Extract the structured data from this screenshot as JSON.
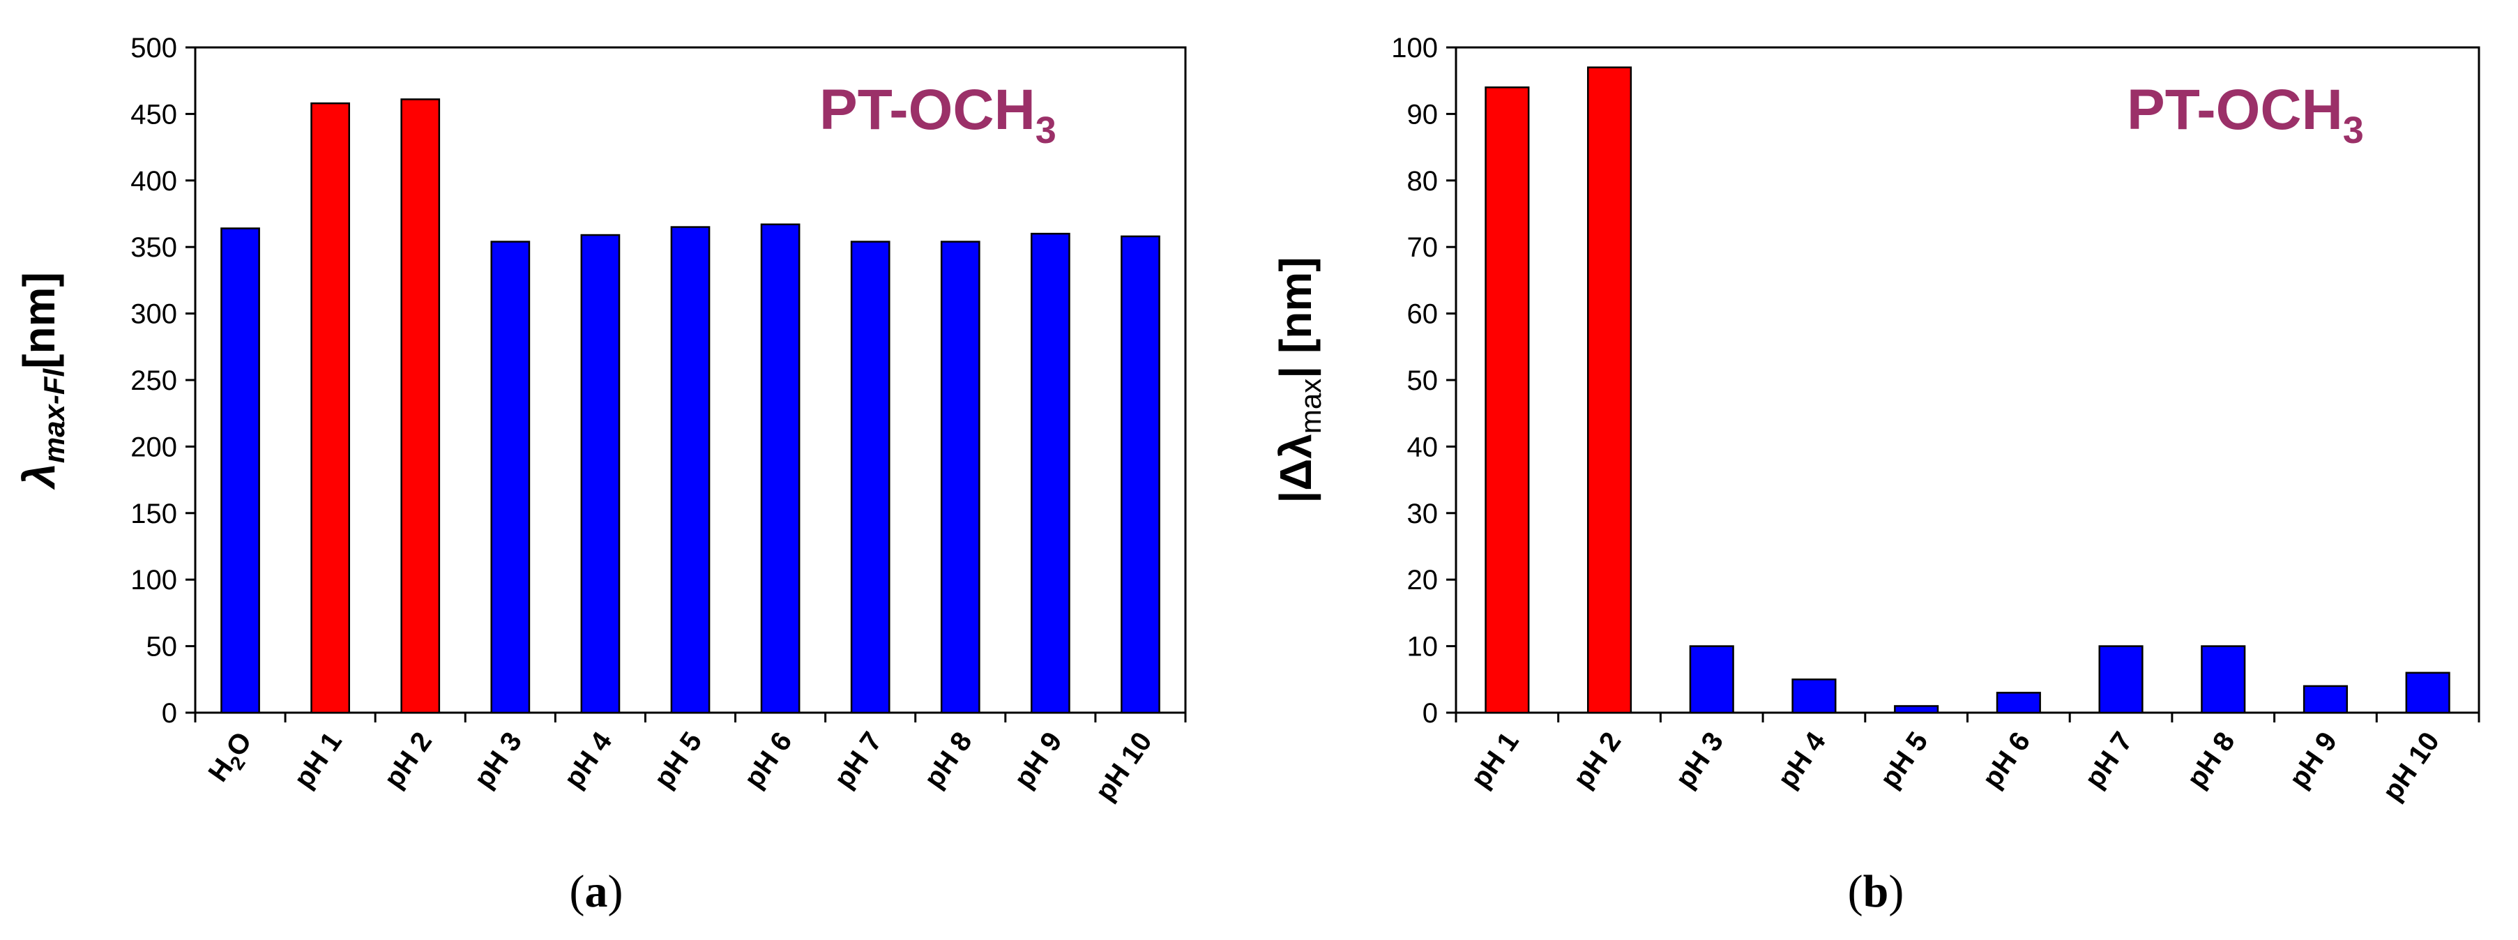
{
  "colors": {
    "highlight": "#ff0000",
    "normal": "#0000ff",
    "annotation": "#9b3068"
  },
  "chart_data": [
    {
      "type": "bar",
      "panel_label": "(a)",
      "ylabel_main": "λ",
      "ylabel_sub": "max-Fl",
      "ylabel_unit": "[nm]",
      "annotation_main": "PT-OCH",
      "annotation_sub": "3",
      "ylim": [
        0,
        500
      ],
      "yticks": [
        0,
        50,
        100,
        150,
        200,
        250,
        300,
        350,
        400,
        450,
        500
      ],
      "categories": [
        "H2O",
        "pH 1",
        "pH 2",
        "pH 3",
        "pH 4",
        "pH 5",
        "pH 6",
        "pH 7",
        "pH 8",
        "pH 9",
        "pH 10"
      ],
      "values": [
        364,
        458,
        461,
        354,
        359,
        365,
        367,
        354,
        354,
        360,
        358
      ],
      "highlight": [
        false,
        true,
        true,
        false,
        false,
        false,
        false,
        false,
        false,
        false,
        false
      ],
      "grid": false
    },
    {
      "type": "bar",
      "panel_label": "(b)",
      "ylabel_main": "|Δλ",
      "ylabel_sub": "max",
      "ylabel_unit": "|  [nm]",
      "annotation_main": "PT-OCH",
      "annotation_sub": "3",
      "ylim": [
        0,
        100
      ],
      "yticks": [
        0,
        10,
        20,
        30,
        40,
        50,
        60,
        70,
        80,
        90,
        100
      ],
      "categories": [
        "pH 1",
        "pH 2",
        "pH 3",
        "pH 4",
        "pH 5",
        "pH 6",
        "pH 7",
        "pH 8",
        "pH 9",
        "pH 10"
      ],
      "values": [
        94,
        97,
        10,
        5,
        1,
        3,
        10,
        10,
        4,
        6
      ],
      "highlight": [
        true,
        true,
        false,
        false,
        false,
        false,
        false,
        false,
        false,
        false
      ],
      "grid": false
    }
  ]
}
